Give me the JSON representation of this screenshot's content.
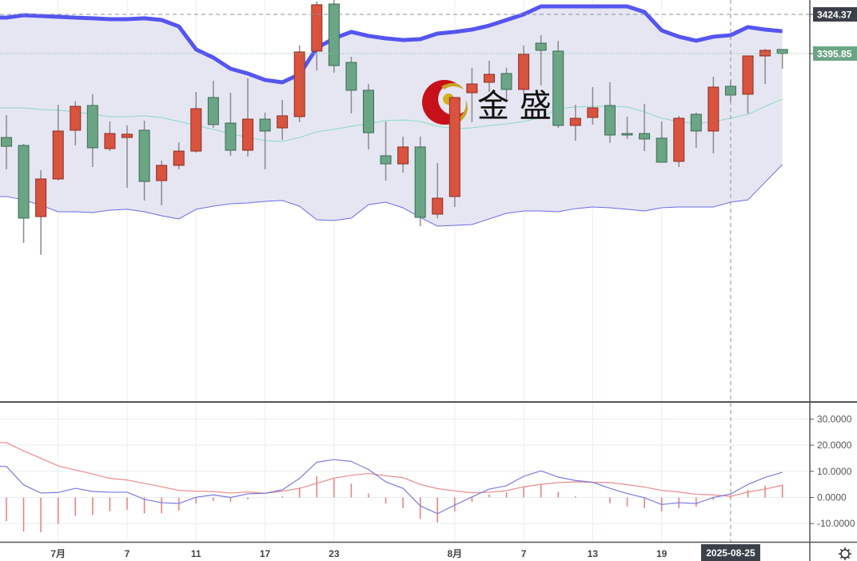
{
  "logo": {
    "text": "金 盛"
  },
  "colors": {
    "up": "#d9533f",
    "up_border": "#8e2f22",
    "down": "#6aa586",
    "down_border": "#3d6b52",
    "wick": "#8a8a8a",
    "band_fill": "#e6e6f3",
    "band_upper": "#5555f0",
    "band_lower": "#6b6be6",
    "band_mid": "#86dcbc",
    "dif": "#7b7be0",
    "dea": "#ec8a8a",
    "hist": "#ec7b7b",
    "last_price_bg": "#6aa586",
    "crosshair_bg": "#3c4049"
  },
  "chart_data": [
    {
      "type": "candlestick",
      "title": "",
      "candles": [
        {
          "o": 3334.7,
          "c": 3328.3,
          "h": 3351.0,
          "l": 3311.5
        },
        {
          "o": 3328.9,
          "c": 3276.0,
          "h": 3330.1,
          "l": 3257.9
        },
        {
          "o": 3277.1,
          "c": 3304.5,
          "h": 3310.9,
          "l": 3249.2
        },
        {
          "o": 3304.5,
          "c": 3339.4,
          "h": 3358.6,
          "l": 3303.3
        },
        {
          "o": 3340.0,
          "c": 3357.4,
          "h": 3360.9,
          "l": 3328.9
        },
        {
          "o": 3358.0,
          "c": 3327.2,
          "h": 3366.2,
          "l": 3313.2
        },
        {
          "o": 3326.6,
          "c": 3337.6,
          "h": 3346.4,
          "l": 3324.8
        },
        {
          "o": 3334.7,
          "c": 3337.1,
          "h": 3343.5,
          "l": 3298.1
        },
        {
          "o": 3340.0,
          "c": 3302.7,
          "h": 3347.0,
          "l": 3288.8
        },
        {
          "o": 3303.3,
          "c": 3314.4,
          "h": 3317.9,
          "l": 3285.3
        },
        {
          "o": 3314.4,
          "c": 3324.8,
          "h": 3331.2,
          "l": 3311.5
        },
        {
          "o": 3324.8,
          "c": 3355.7,
          "h": 3367.9,
          "l": 3323.7
        },
        {
          "o": 3363.8,
          "c": 3344.1,
          "h": 3376.1,
          "l": 3341.7
        },
        {
          "o": 3345.2,
          "c": 3325.4,
          "h": 3367.3,
          "l": 3321.4
        },
        {
          "o": 3325.4,
          "c": 3348.1,
          "h": 3377.8,
          "l": 3320.8
        },
        {
          "o": 3348.1,
          "c": 3339.4,
          "h": 3352.8,
          "l": 3311.5
        },
        {
          "o": 3341.7,
          "c": 3350.5,
          "h": 3362.1,
          "l": 3333.0
        },
        {
          "o": 3349.9,
          "c": 3397.0,
          "h": 3401.7,
          "l": 3345.8
        },
        {
          "o": 3397.6,
          "c": 3431.4,
          "h": 3433.7,
          "l": 3383.6
        },
        {
          "o": 3431.9,
          "c": 3387.1,
          "h": 3434.8,
          "l": 3381.9
        },
        {
          "o": 3389.4,
          "c": 3369.1,
          "h": 3393.5,
          "l": 3352.2
        },
        {
          "o": 3369.1,
          "c": 3338.2,
          "h": 3373.7,
          "l": 3326.0
        },
        {
          "o": 3321.4,
          "c": 3315.5,
          "h": 3346.4,
          "l": 3303.3
        },
        {
          "o": 3315.5,
          "c": 3327.8,
          "h": 3335.3,
          "l": 3309.1
        },
        {
          "o": 3327.8,
          "c": 3276.5,
          "h": 3335.3,
          "l": 3270.1
        },
        {
          "o": 3278.9,
          "c": 3290.5,
          "h": 3316.1,
          "l": 3276.0
        },
        {
          "o": 3291.7,
          "c": 3363.8,
          "h": 3363.8,
          "l": 3284.1
        },
        {
          "o": 3367.3,
          "c": 3373.7,
          "h": 3385.4,
          "l": 3345.8
        },
        {
          "o": 3374.9,
          "c": 3380.7,
          "h": 3390.6,
          "l": 3367.9
        },
        {
          "o": 3381.3,
          "c": 3369.7,
          "h": 3385.4,
          "l": 3362.1
        },
        {
          "o": 3369.7,
          "c": 3395.3,
          "h": 3401.7,
          "l": 3366.2
        },
        {
          "o": 3403.4,
          "c": 3398.2,
          "h": 3409.2,
          "l": 3372.6
        },
        {
          "o": 3397.6,
          "c": 3343.5,
          "h": 3405.2,
          "l": 3341.7
        },
        {
          "o": 3343.5,
          "c": 3348.7,
          "h": 3358.6,
          "l": 3332.4
        },
        {
          "o": 3349.3,
          "c": 3356.3,
          "h": 3371.4,
          "l": 3344.1
        },
        {
          "o": 3358.0,
          "c": 3336.5,
          "h": 3374.9,
          "l": 3330.7
        },
        {
          "o": 3337.6,
          "c": 3336.5,
          "h": 3349.9,
          "l": 3333.6
        },
        {
          "o": 3337.6,
          "c": 3333.6,
          "h": 3359.2,
          "l": 3324.8
        },
        {
          "o": 3334.2,
          "c": 3316.7,
          "h": 3346.4,
          "l": 3316.7
        },
        {
          "o": 3317.3,
          "c": 3348.7,
          "h": 3350.5,
          "l": 3313.2
        },
        {
          "o": 3351.6,
          "c": 3339.4,
          "h": 3352.8,
          "l": 3327.2
        },
        {
          "o": 3339.4,
          "c": 3371.4,
          "h": 3379.0,
          "l": 3323.1
        },
        {
          "o": 3372.0,
          "c": 3365.6,
          "h": 3376.6,
          "l": 3360.3
        },
        {
          "o": 3366.2,
          "c": 3394.1,
          "h": 3394.1,
          "l": 3352.2
        },
        {
          "o": 3394.1,
          "c": 3398.2,
          "h": 3399.3,
          "l": 3373.7
        },
        {
          "o": 3398.8,
          "c": 3395.85,
          "h": 3398.8,
          "l": 3384.8
        }
      ],
      "bollinger": {
        "upper": [
          3422.0,
          3423.8,
          3423.2,
          3422.6,
          3422.0,
          3421.5,
          3420.9,
          3420.9,
          3421.5,
          3420.3,
          3415.6,
          3398.8,
          3392.9,
          3384.8,
          3381.3,
          3376.6,
          3374.9,
          3380.7,
          3399.9,
          3406.9,
          3411.6,
          3408.7,
          3406.9,
          3405.7,
          3406.3,
          3410.4,
          3411.6,
          3413.3,
          3416.2,
          3420.3,
          3424.4,
          3430.2,
          3430.2,
          3430.2,
          3430.2,
          3430.2,
          3430.2,
          3426.1,
          3412.7,
          3408.1,
          3405.2,
          3408.1,
          3409.2,
          3415.1,
          3413.3,
          3412.1
        ],
        "middle": [
          3356.3,
          3356.3,
          3355.1,
          3354.5,
          3353.4,
          3351.6,
          3349.9,
          3349.9,
          3350.5,
          3349.3,
          3346.4,
          3343.5,
          3340.6,
          3337.6,
          3334.7,
          3332.4,
          3331.8,
          3334.7,
          3338.8,
          3340.6,
          3342.9,
          3344.6,
          3347.0,
          3347.5,
          3346.4,
          3342.9,
          3341.1,
          3341.7,
          3343.5,
          3344.6,
          3346.4,
          3349.3,
          3355.7,
          3356.9,
          3357.4,
          3357.4,
          3356.9,
          3353.4,
          3348.7,
          3346.4,
          3344.6,
          3346.4,
          3348.7,
          3351.6,
          3357.4,
          3362.7
        ],
        "lower": [
          3291.7,
          3289.3,
          3285.3,
          3280.6,
          3280.6,
          3280.0,
          3281.8,
          3282.4,
          3280.6,
          3277.7,
          3275.4,
          3282.4,
          3284.7,
          3286.4,
          3287.0,
          3288.2,
          3288.8,
          3284.7,
          3274.8,
          3274.2,
          3276.0,
          3285.8,
          3287.6,
          3283.5,
          3276.5,
          3270.1,
          3270.7,
          3271.3,
          3275.4,
          3279.5,
          3281.2,
          3281.2,
          3280.6,
          3282.9,
          3284.1,
          3283.5,
          3282.4,
          3281.2,
          3283.5,
          3284.1,
          3284.1,
          3284.1,
          3287.6,
          3289.3,
          3302.1,
          3315.0
        ]
      },
      "price_labels": [
        {
          "value": "3424.37",
          "kind": "crosshair"
        },
        {
          "value": "3395.85",
          "kind": "last"
        }
      ],
      "crosshair": {
        "price": 3424.37,
        "index": 42,
        "date_label": "2025-08-25"
      },
      "x_ticks": [
        {
          "index": 3,
          "label": "7月"
        },
        {
          "index": 7,
          "label": "7"
        },
        {
          "index": 11,
          "label": "11"
        },
        {
          "index": 15,
          "label": "17"
        },
        {
          "index": 19,
          "label": "23"
        },
        {
          "index": 26,
          "label": "8月"
        },
        {
          "index": 30,
          "label": "7"
        },
        {
          "index": 34,
          "label": "13"
        },
        {
          "index": 38,
          "label": "19"
        }
      ]
    },
    {
      "type": "macd",
      "dif": [
        11.9,
        4.8,
        1.7,
        1.9,
        3.5,
        2.3,
        2.0,
        2.0,
        -0.7,
        -2.0,
        -2.3,
        0.1,
        1.0,
        0.0,
        1.4,
        1.6,
        2.9,
        7.3,
        13.5,
        14.5,
        13.8,
        10.7,
        6.0,
        3.5,
        -3.2,
        -6.2,
        -2.9,
        0.2,
        3.2,
        4.5,
        8.1,
        10.2,
        7.8,
        6.5,
        5.8,
        3.5,
        1.5,
        -0.1,
        -2.7,
        -2.0,
        -2.3,
        0.0,
        1.3,
        5.0,
        7.7,
        9.6
      ],
      "dea": [
        21.0,
        17.8,
        15.0,
        12.1,
        10.5,
        9.0,
        7.3,
        6.7,
        5.4,
        4.1,
        2.7,
        2.4,
        2.3,
        1.7,
        2.1,
        1.6,
        2.4,
        3.5,
        5.4,
        7.4,
        8.5,
        9.2,
        8.3,
        7.6,
        5.0,
        3.4,
        2.5,
        1.8,
        2.0,
        2.6,
        4.1,
        5.0,
        5.7,
        6.0,
        5.8,
        5.7,
        4.9,
        4.0,
        2.7,
        2.1,
        1.2,
        1.0,
        0.4,
        2.1,
        3.2,
        4.7
      ],
      "hist": [
        -9.1,
        -13.0,
        -13.3,
        -10.2,
        -7.0,
        -6.7,
        -5.3,
        -4.7,
        -6.1,
        -6.1,
        -5.0,
        -2.3,
        -1.3,
        -1.7,
        -0.7,
        0.0,
        0.5,
        3.8,
        8.1,
        7.1,
        5.3,
        1.5,
        -2.3,
        -4.1,
        -8.2,
        -9.6,
        -5.4,
        -1.6,
        1.2,
        1.9,
        4.0,
        5.2,
        2.1,
        0.5,
        0.0,
        -2.2,
        -3.4,
        -4.1,
        -5.4,
        -4.1,
        -3.5,
        -1.0,
        0.9,
        2.9,
        4.5,
        4.9
      ],
      "y_ticks": [
        {
          "value": 30,
          "label": "30.0000"
        },
        {
          "value": 20,
          "label": "20.0000"
        },
        {
          "value": 10,
          "label": "10.0000"
        },
        {
          "value": 0,
          "label": "0.0000"
        },
        {
          "value": -10,
          "label": "-10.0000"
        }
      ]
    }
  ]
}
